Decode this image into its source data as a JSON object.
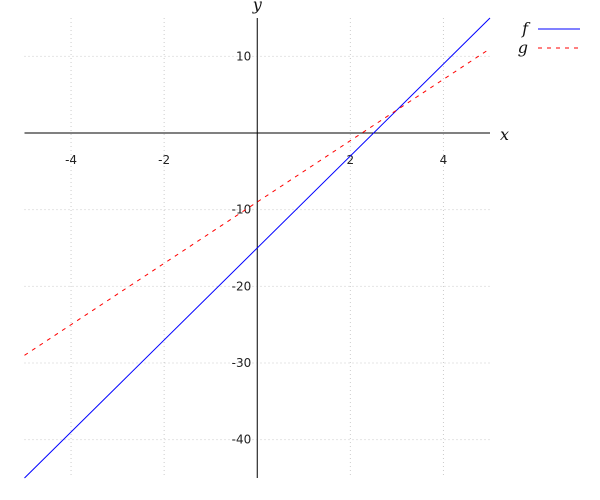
{
  "chart_data": {
    "type": "line",
    "xlabel": "x",
    "ylabel": "y",
    "xlim": [
      -5,
      5
    ],
    "ylim": [
      -45,
      15
    ],
    "xticks": [
      -4,
      -2,
      2,
      4
    ],
    "yticks": [
      10,
      -10,
      -20,
      -30,
      -40
    ],
    "grid": true,
    "legend": "top-right",
    "series": [
      {
        "name": "f",
        "expr": "6x-15",
        "color": "#0000ff",
        "style": "solid",
        "x": [
          -5,
          5
        ],
        "y": [
          -45,
          15
        ]
      },
      {
        "name": "g",
        "expr": "4x-9",
        "color": "#ff0000",
        "style": "dashed",
        "x": [
          -5,
          5
        ],
        "y": [
          -29,
          11
        ]
      }
    ]
  }
}
